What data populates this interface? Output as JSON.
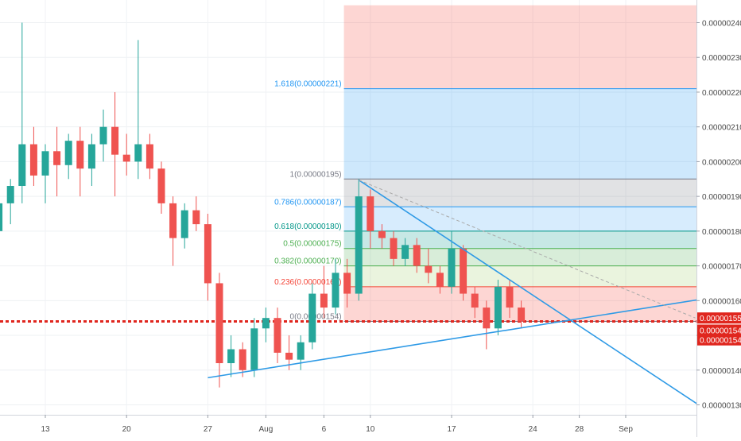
{
  "chart_data": {
    "type": "candlestick",
    "x_axis": {
      "labels": [
        "13",
        "20",
        "27",
        "Aug",
        "6",
        "10",
        "17",
        "24",
        "28",
        "Sep"
      ]
    },
    "y_axis": {
      "ylim": [
        1.25e-06,
        2.45e-06
      ],
      "ticks": [
        "0.00000240",
        "0.00000230",
        "0.00000220",
        "0.00000210",
        "0.00000200",
        "0.00000190",
        "0.00000180",
        "0.00000170",
        "0.00000160",
        "0.00000150",
        "0.00000140",
        "0.00000130"
      ],
      "tick_values": [
        2.4e-06,
        2.3e-06,
        2.2e-06,
        2.1e-06,
        2e-06,
        1.9e-06,
        1.8e-06,
        1.7e-06,
        1.6e-06,
        1.5e-06,
        1.4e-06,
        1.3e-06
      ],
      "price_tags": [
        {
          "label": "0.00000155",
          "value": 1.55e-06
        },
        {
          "label": "0.00000154",
          "value": 1.515e-06
        },
        {
          "label": "0.00000154",
          "value": 1.487e-06
        }
      ]
    },
    "fibonacci": {
      "start_date": "2019-08-08",
      "end_date": "2019-09-08",
      "levels": [
        {
          "label": "1.618(0.00000221)",
          "value": 2.21e-06,
          "color": "#2196f3"
        },
        {
          "label": "1(0.00000195)",
          "value": 1.95e-06,
          "color": "#787b86"
        },
        {
          "label": "0.786(0.00000187)",
          "value": 1.87e-06,
          "color": "#2196f3"
        },
        {
          "label": "0.618(0.00000180)",
          "value": 1.8e-06,
          "color": "#009688"
        },
        {
          "label": "0.5(0.00000175)",
          "value": 1.75e-06,
          "color": "#4caf50"
        },
        {
          "label": "0.382(0.00000170)",
          "value": 1.7e-06,
          "color": "#4caf50"
        },
        {
          "label": "0.236(0.00000164)",
          "value": 1.64e-06,
          "color": "#f44336"
        },
        {
          "label": "0(0.00000154)",
          "value": 1.54e-06,
          "color": "#787b86"
        }
      ]
    },
    "support_line": {
      "value": 1.54e-06,
      "color": "#e0261e"
    },
    "trendlines": [
      {
        "start": [
          "2019-07-27",
          1.378e-06
        ],
        "end": [
          "2019-09-09",
          1.612e-06
        ],
        "color": "#2e9ae6"
      },
      {
        "start": [
          "2019-08-09",
          1.947e-06
        ],
        "end": [
          "2019-09-09",
          1.262e-06
        ],
        "color": "#2e9ae6"
      },
      {
        "start": [
          "2019-08-09",
          1.947e-06
        ],
        "end": [
          "2019-09-07",
          1.55e-06
        ],
        "color": "#a9a9a9",
        "dashed": true
      }
    ],
    "colors": {
      "up": "#26a69a",
      "down": "#ef5350"
    },
    "candles": [
      {
        "date": "2019-07-06",
        "open": 2e-06,
        "high": 2.1e-06,
        "low": 1.8e-06,
        "close": 2.02e-06
      },
      {
        "date": "2019-07-07",
        "open": 2.02e-06,
        "high": 2.12e-06,
        "low": 1.9e-06,
        "close": 1.9e-06
      },
      {
        "date": "2019-07-08",
        "open": 1.9e-06,
        "high": 1.95e-06,
        "low": 1.7e-06,
        "close": 1.8e-06
      },
      {
        "date": "2019-07-09",
        "open": 1.8e-06,
        "high": 1.9e-06,
        "low": 1.75e-06,
        "close": 1.88e-06
      },
      {
        "date": "2019-07-10",
        "open": 1.88e-06,
        "high": 1.95e-06,
        "low": 1.82e-06,
        "close": 1.93e-06
      },
      {
        "date": "2019-07-11",
        "open": 1.93e-06,
        "high": 2.4e-06,
        "low": 1.88e-06,
        "close": 2.05e-06
      },
      {
        "date": "2019-07-12",
        "open": 2.05e-06,
        "high": 2.1e-06,
        "low": 1.93e-06,
        "close": 1.96e-06
      },
      {
        "date": "2019-07-13",
        "open": 1.96e-06,
        "high": 2.05e-06,
        "low": 1.88e-06,
        "close": 2.03e-06
      },
      {
        "date": "2019-07-14",
        "open": 2.03e-06,
        "high": 2.1e-06,
        "low": 1.9e-06,
        "close": 1.99e-06
      },
      {
        "date": "2019-07-15",
        "open": 1.99e-06,
        "high": 2.08e-06,
        "low": 1.95e-06,
        "close": 2.06e-06
      },
      {
        "date": "2019-07-16",
        "open": 2.06e-06,
        "high": 2.1e-06,
        "low": 1.9e-06,
        "close": 1.98e-06
      },
      {
        "date": "2019-07-17",
        "open": 1.98e-06,
        "high": 2.08e-06,
        "low": 1.93e-06,
        "close": 2.05e-06
      },
      {
        "date": "2019-07-18",
        "open": 2.05e-06,
        "high": 2.15e-06,
        "low": 2e-06,
        "close": 2.1e-06
      },
      {
        "date": "2019-07-19",
        "open": 2.1e-06,
        "high": 2.2e-06,
        "low": 1.9e-06,
        "close": 2.02e-06
      },
      {
        "date": "2019-07-20",
        "open": 2.02e-06,
        "high": 2.08e-06,
        "low": 1.96e-06,
        "close": 2e-06
      },
      {
        "date": "2019-07-21",
        "open": 2e-06,
        "high": 2.35e-06,
        "low": 1.95e-06,
        "close": 2.05e-06
      },
      {
        "date": "2019-07-22",
        "open": 2.05e-06,
        "high": 2.08e-06,
        "low": 1.95e-06,
        "close": 1.98e-06
      },
      {
        "date": "2019-07-23",
        "open": 1.98e-06,
        "high": 2e-06,
        "low": 1.85e-06,
        "close": 1.88e-06
      },
      {
        "date": "2019-07-24",
        "open": 1.88e-06,
        "high": 1.9e-06,
        "low": 1.7e-06,
        "close": 1.78e-06
      },
      {
        "date": "2019-07-25",
        "open": 1.78e-06,
        "high": 1.88e-06,
        "low": 1.75e-06,
        "close": 1.86e-06
      },
      {
        "date": "2019-07-26",
        "open": 1.86e-06,
        "high": 1.9e-06,
        "low": 1.8e-06,
        "close": 1.82e-06
      },
      {
        "date": "2019-07-27",
        "open": 1.82e-06,
        "high": 1.85e-06,
        "low": 1.6e-06,
        "close": 1.65e-06
      },
      {
        "date": "2019-07-28",
        "open": 1.65e-06,
        "high": 1.68e-06,
        "low": 1.35e-06,
        "close": 1.42e-06
      },
      {
        "date": "2019-07-29",
        "open": 1.42e-06,
        "high": 1.5e-06,
        "low": 1.38e-06,
        "close": 1.46e-06
      },
      {
        "date": "2019-07-30",
        "open": 1.46e-06,
        "high": 1.48e-06,
        "low": 1.38e-06,
        "close": 1.4e-06
      },
      {
        "date": "2019-07-31",
        "open": 1.4e-06,
        "high": 1.55e-06,
        "low": 1.38e-06,
        "close": 1.52e-06
      },
      {
        "date": "2019-08-01",
        "open": 1.52e-06,
        "high": 1.58e-06,
        "low": 1.48e-06,
        "close": 1.55e-06
      },
      {
        "date": "2019-08-02",
        "open": 1.55e-06,
        "high": 1.58e-06,
        "low": 1.42e-06,
        "close": 1.45e-06
      },
      {
        "date": "2019-08-03",
        "open": 1.45e-06,
        "high": 1.5e-06,
        "low": 1.4e-06,
        "close": 1.43e-06
      },
      {
        "date": "2019-08-04",
        "open": 1.43e-06,
        "high": 1.5e-06,
        "low": 1.4e-06,
        "close": 1.48e-06
      },
      {
        "date": "2019-08-05",
        "open": 1.48e-06,
        "high": 1.65e-06,
        "low": 1.46e-06,
        "close": 1.62e-06
      },
      {
        "date": "2019-08-06",
        "open": 1.62e-06,
        "high": 1.7e-06,
        "low": 1.55e-06,
        "close": 1.58e-06
      },
      {
        "date": "2019-08-07",
        "open": 1.58e-06,
        "high": 1.72e-06,
        "low": 1.56e-06,
        "close": 1.68e-06
      },
      {
        "date": "2019-08-08",
        "open": 1.68e-06,
        "high": 1.72e-06,
        "low": 1.58e-06,
        "close": 1.62e-06
      },
      {
        "date": "2019-08-09",
        "open": 1.62e-06,
        "high": 1.95e-06,
        "low": 1.6e-06,
        "close": 1.9e-06
      },
      {
        "date": "2019-08-10",
        "open": 1.9e-06,
        "high": 1.92e-06,
        "low": 1.75e-06,
        "close": 1.8e-06
      },
      {
        "date": "2019-08-11",
        "open": 1.8e-06,
        "high": 1.82e-06,
        "low": 1.75e-06,
        "close": 1.78e-06
      },
      {
        "date": "2019-08-12",
        "open": 1.78e-06,
        "high": 1.8e-06,
        "low": 1.7e-06,
        "close": 1.72e-06
      },
      {
        "date": "2019-08-13",
        "open": 1.72e-06,
        "high": 1.78e-06,
        "low": 1.7e-06,
        "close": 1.76e-06
      },
      {
        "date": "2019-08-14",
        "open": 1.76e-06,
        "high": 1.78e-06,
        "low": 1.68e-06,
        "close": 1.7e-06
      },
      {
        "date": "2019-08-15",
        "open": 1.7e-06,
        "high": 1.75e-06,
        "low": 1.65e-06,
        "close": 1.68e-06
      },
      {
        "date": "2019-08-16",
        "open": 1.68e-06,
        "high": 1.7e-06,
        "low": 1.62e-06,
        "close": 1.64e-06
      },
      {
        "date": "2019-08-17",
        "open": 1.64e-06,
        "high": 1.8e-06,
        "low": 1.62e-06,
        "close": 1.75e-06
      },
      {
        "date": "2019-08-18",
        "open": 1.75e-06,
        "high": 1.76e-06,
        "low": 1.6e-06,
        "close": 1.62e-06
      },
      {
        "date": "2019-08-19",
        "open": 1.62e-06,
        "high": 1.64e-06,
        "low": 1.55e-06,
        "close": 1.58e-06
      },
      {
        "date": "2019-08-20",
        "open": 1.58e-06,
        "high": 1.6e-06,
        "low": 1.46e-06,
        "close": 1.52e-06
      },
      {
        "date": "2019-08-21",
        "open": 1.52e-06,
        "high": 1.66e-06,
        "low": 1.5e-06,
        "close": 1.64e-06
      },
      {
        "date": "2019-08-22",
        "open": 1.64e-06,
        "high": 1.66e-06,
        "low": 1.55e-06,
        "close": 1.58e-06
      },
      {
        "date": "2019-08-23",
        "open": 1.58e-06,
        "high": 1.6e-06,
        "low": 1.52e-06,
        "close": 1.54e-06
      }
    ]
  }
}
